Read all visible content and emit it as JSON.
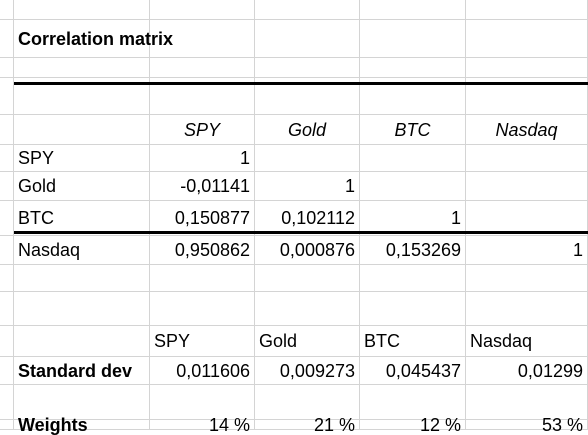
{
  "title": "Correlation matrix",
  "matrix": {
    "headers": [
      "SPY",
      "Gold",
      "BTC",
      "Nasdaq"
    ],
    "rows": [
      {
        "label": "SPY",
        "values": [
          "1",
          "",
          "",
          ""
        ]
      },
      {
        "label": "Gold",
        "values": [
          "-0,01141",
          "1",
          "",
          ""
        ]
      },
      {
        "label": "BTC",
        "values": [
          "0,150877",
          "0,102112",
          "1",
          ""
        ]
      },
      {
        "label": "Nasdaq",
        "values": [
          "0,950862",
          "0,000876",
          "0,153269",
          "1"
        ]
      }
    ]
  },
  "stats": {
    "headers": [
      "SPY",
      "Gold",
      "BTC",
      "Nasdaq"
    ],
    "std_label": "Standard dev",
    "std_values": [
      "0,011606",
      "0,009273",
      "0,045437",
      "0,01299"
    ],
    "weights_label": "Weights",
    "weights_values": [
      "14 %",
      "21 %",
      "12 %",
      "53 %"
    ]
  }
}
